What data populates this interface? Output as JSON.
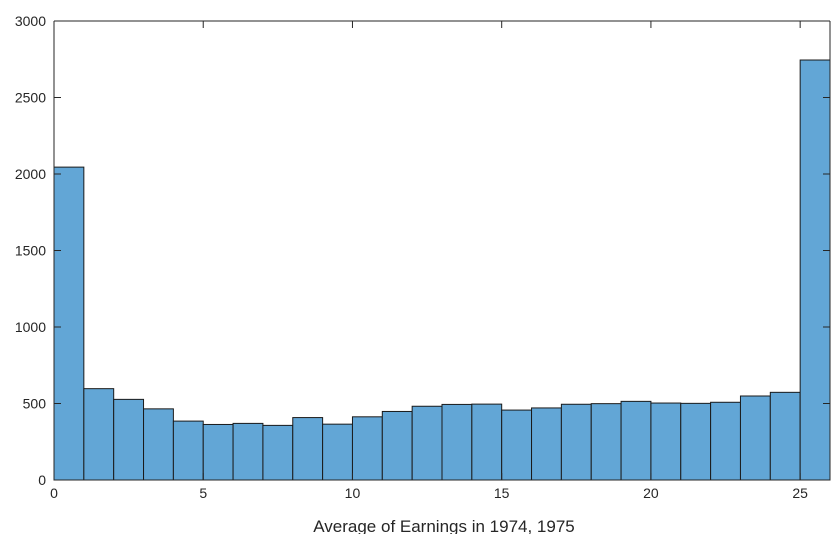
{
  "chart_data": {
    "type": "bar",
    "title": "",
    "xlabel": "Average of Earnings in 1974, 1975",
    "ylabel": "",
    "bin_edges": [
      0,
      1,
      2,
      3,
      4,
      5,
      6,
      7,
      8,
      9,
      10,
      11,
      12,
      13,
      14,
      15,
      16,
      17,
      18,
      19,
      20,
      21,
      22,
      23,
      24,
      25,
      26
    ],
    "values": [
      2045,
      597,
      527,
      465,
      385,
      363,
      370,
      357,
      408,
      365,
      413,
      448,
      482,
      494,
      496,
      457,
      471,
      495,
      499,
      514,
      503,
      501,
      508,
      549,
      573,
      2745
    ],
    "xlim": [
      0,
      26
    ],
    "ylim": [
      0,
      3000
    ],
    "x_ticks": [
      0,
      5,
      10,
      15,
      20,
      25
    ],
    "y_ticks": [
      0,
      500,
      1000,
      1500,
      2000,
      2500,
      3000
    ],
    "x_tick_labels": [
      "0",
      "5",
      "10",
      "15",
      "20",
      "25"
    ],
    "y_tick_labels": [
      "0",
      "500",
      "1000",
      "1500",
      "2000",
      "2500",
      "3000"
    ],
    "grid": false,
    "colors": {
      "bar_fill": "#62a6d6",
      "bar_edge": "#1a1a1a",
      "axis": "#262626"
    }
  }
}
